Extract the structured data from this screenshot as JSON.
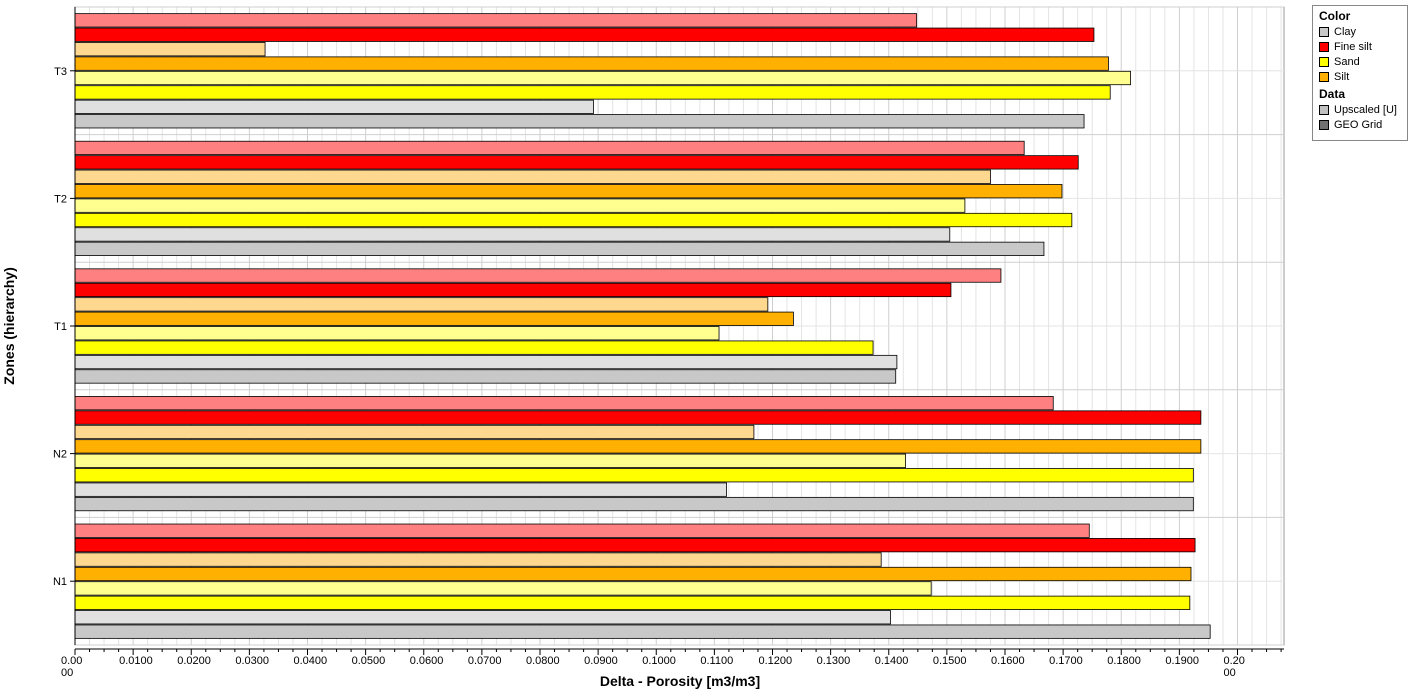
{
  "chart_data": {
    "type": "bar",
    "orientation": "horizontal",
    "xlabel": "Delta - Porosity [m3/m3]",
    "ylabel": "Zones (hierarchy)",
    "xlim": [
      0.0,
      0.208
    ],
    "x_ticks": [
      "0.00\n00",
      "0.0100",
      "0.0200",
      "0.0300",
      "0.0400",
      "0.0500",
      "0.0600",
      "0.0700",
      "0.0800",
      "0.0900",
      "0.1000",
      "0.1100",
      "0.1200",
      "0.1300",
      "0.1400",
      "0.1500",
      "0.1600",
      "0.1700",
      "0.1800",
      "0.1900",
      "0.20\n00"
    ],
    "grid": true,
    "legend_position": "top-right",
    "zones": [
      "T3",
      "T2",
      "T1",
      "N2",
      "N1"
    ],
    "bar_order": [
      "Fine silt [U]",
      "Fine silt",
      "Silt [U]",
      "Silt",
      "Sand [U]",
      "Sand",
      "Clay [U]",
      "Clay"
    ],
    "series": [
      {
        "name": "Fine silt",
        "data": "Upscaled [U]",
        "color": "#ff8080",
        "values": [
          0.1448,
          0.1633,
          0.1593,
          0.1683,
          0.1745
        ]
      },
      {
        "name": "Fine silt",
        "data": "GEO Grid",
        "color": "#ff0000",
        "values": [
          0.1753,
          0.1726,
          0.1507,
          0.1937,
          0.1927
        ]
      },
      {
        "name": "Silt",
        "data": "Upscaled [U]",
        "color": "#ffd890",
        "values": [
          0.0327,
          0.1575,
          0.1192,
          0.1168,
          0.1387
        ]
      },
      {
        "name": "Silt",
        "data": "GEO Grid",
        "color": "#ffb000",
        "values": [
          0.1778,
          0.1698,
          0.1236,
          0.1937,
          0.192
        ]
      },
      {
        "name": "Sand",
        "data": "Upscaled [U]",
        "color": "#ffff90",
        "values": [
          0.1816,
          0.1531,
          0.1108,
          0.1429,
          0.1473
        ]
      },
      {
        "name": "Sand",
        "data": "GEO Grid",
        "color": "#ffff00",
        "values": [
          0.1781,
          0.1715,
          0.1373,
          0.1924,
          0.1918
        ]
      },
      {
        "name": "Clay",
        "data": "Upscaled [U]",
        "color": "#e0e0e0",
        "values": [
          0.0892,
          0.1505,
          0.1414,
          0.1121,
          0.1403
        ]
      },
      {
        "name": "Clay",
        "data": "GEO Grid",
        "color": "#c8c8c8",
        "values": [
          0.1736,
          0.1667,
          0.1412,
          0.1924,
          0.1953
        ]
      }
    ]
  },
  "legend": {
    "color_title": "Color",
    "color_items": [
      {
        "label": "Clay",
        "color": "#c8c8c8"
      },
      {
        "label": "Fine silt",
        "color": "#ff0000"
      },
      {
        "label": "Sand",
        "color": "#ffff00"
      },
      {
        "label": "Silt",
        "color": "#ffb000"
      }
    ],
    "data_title": "Data",
    "data_items": [
      {
        "label": "Upscaled [U]",
        "color": "#c0c0c0"
      },
      {
        "label": "GEO Grid",
        "color": "#707070"
      }
    ]
  }
}
